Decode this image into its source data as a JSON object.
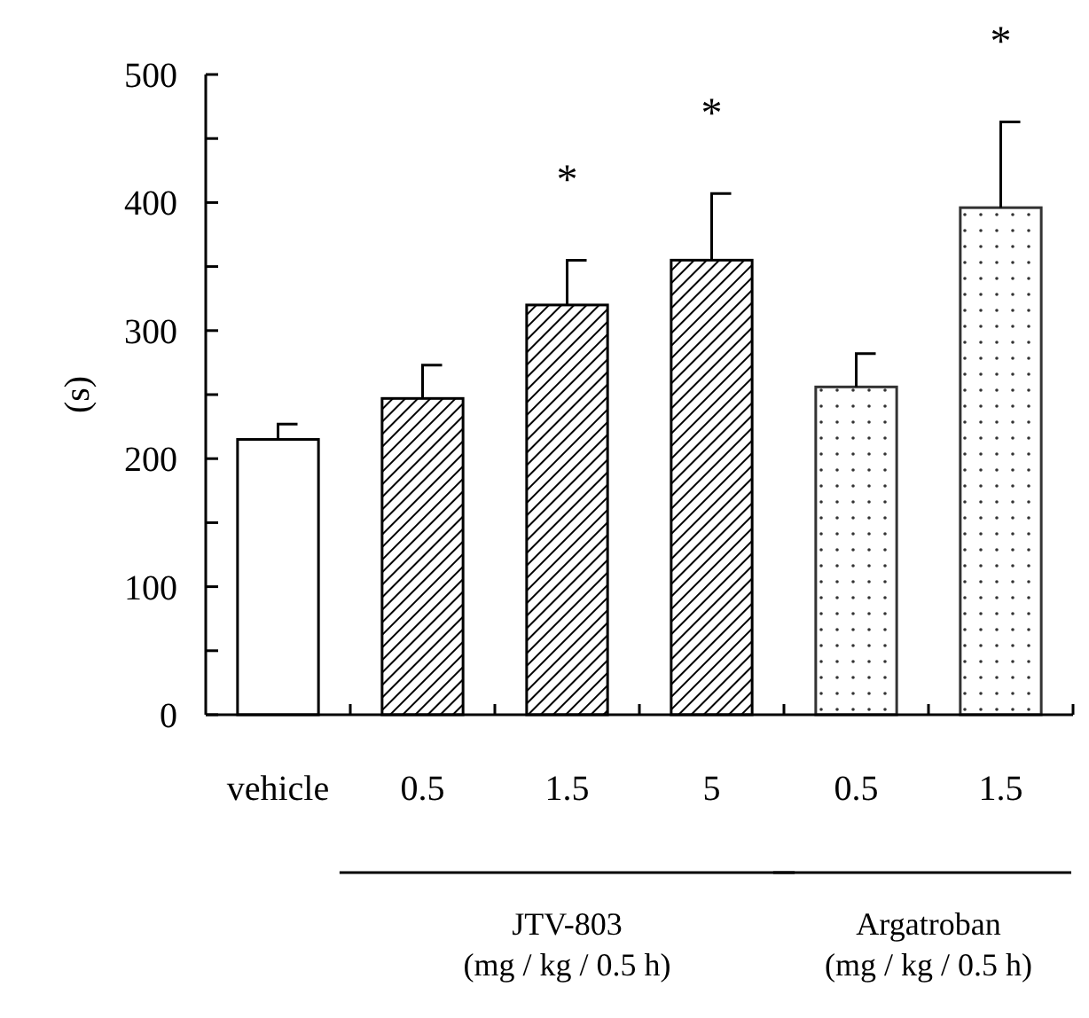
{
  "chart_data": {
    "type": "bar",
    "ylabel": "(s)",
    "categories": [
      "vehicle",
      "0.5",
      "1.5",
      "5",
      "0.5",
      "1.5"
    ],
    "values": [
      215,
      247,
      320,
      355,
      256,
      396
    ],
    "errors": [
      12,
      26,
      35,
      52,
      26,
      67
    ],
    "colors": [
      "#ffffff",
      "#000000",
      "#000000",
      "#000000",
      "#333333",
      "#333333"
    ],
    "ylim": [
      0,
      500
    ],
    "yticks": [
      0,
      {
        "value": 50,
        "label": null
      },
      100,
      {
        "value": 150,
        "label": null
      },
      200,
      {
        "value": 250,
        "label": null
      },
      300,
      {
        "value": 350,
        "label": null
      },
      400,
      {
        "value": 450,
        "label": null
      },
      500
    ],
    "grid": false,
    "annotations": [
      {
        "text": "*",
        "x": "1.5",
        "y": 355
      },
      {
        "text": "*",
        "x": "5",
        "y": 407
      },
      {
        "text": "*",
        "y": 463
      },
      "JTV-803\n(mg / kg / 0.5 h)",
      "Argatroban\n(mg / kg / 0.5 h)"
    ]
  }
}
